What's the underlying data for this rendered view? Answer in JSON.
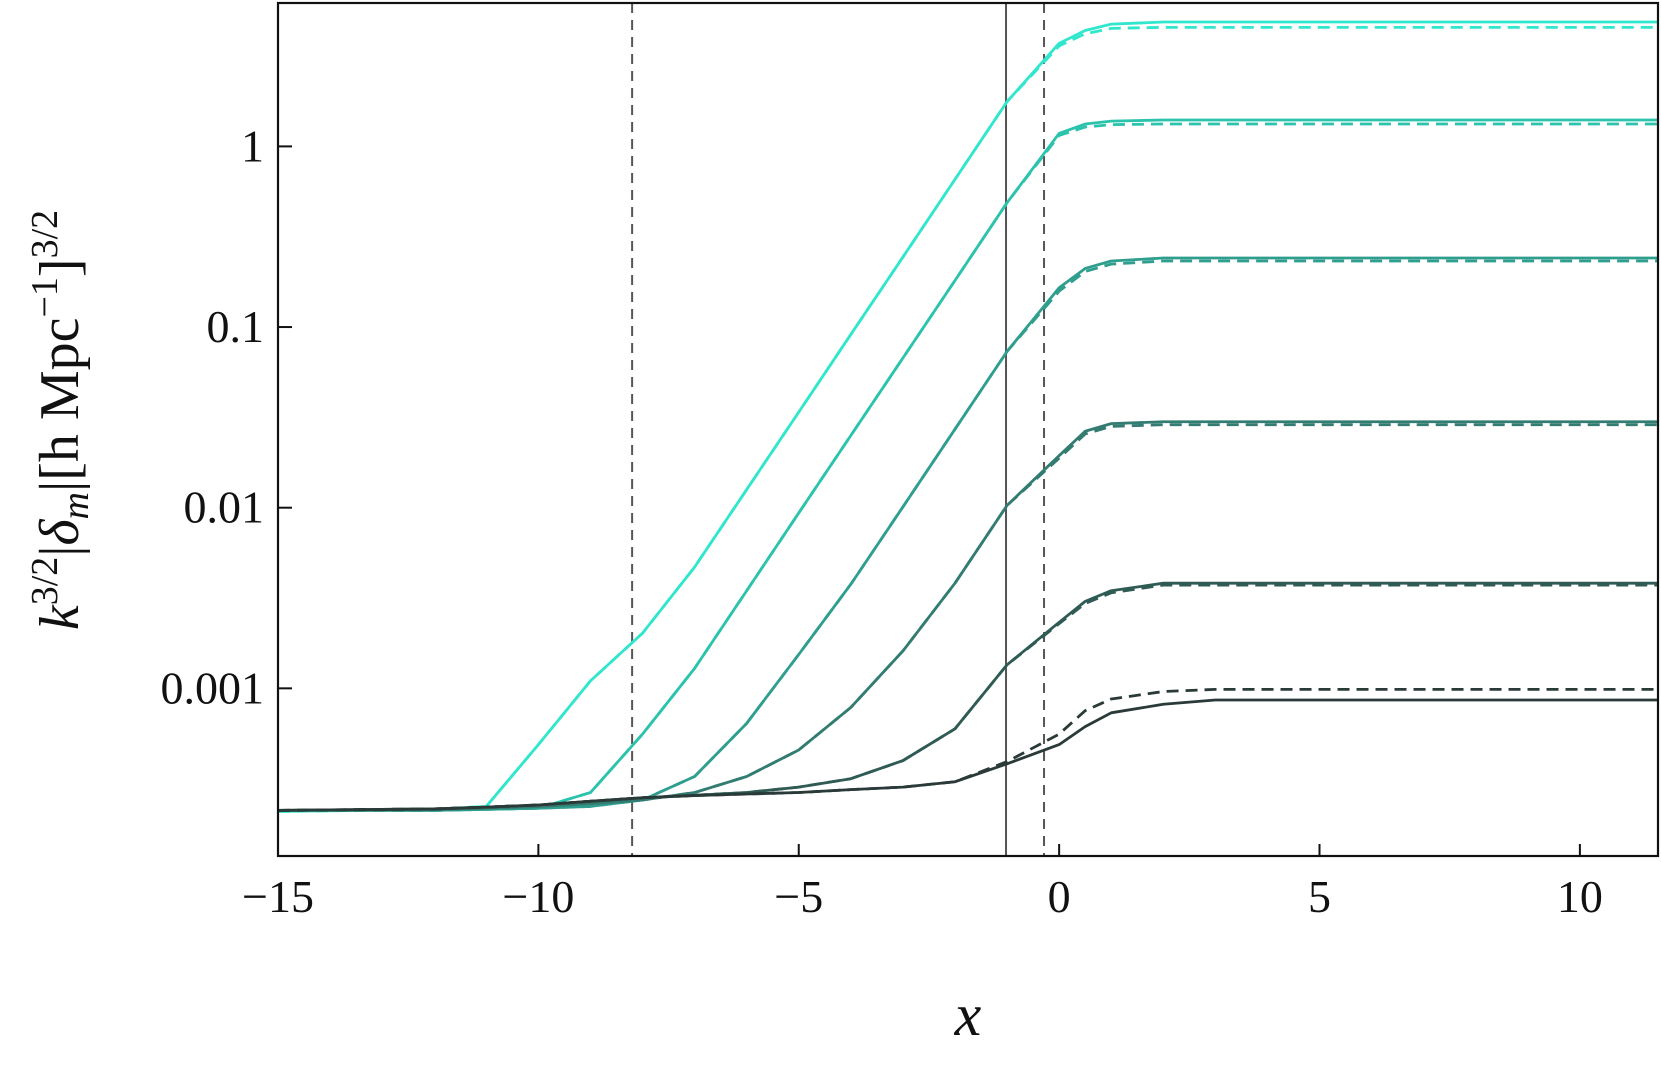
{
  "chart_data": {
    "type": "line",
    "xlabel": "x",
    "ylabel": [
      {
        "text": "k",
        "style": "italic"
      },
      {
        "text": "3/2",
        "shift": "sup"
      },
      {
        "text": "|"
      },
      {
        "text": "δ",
        "style": "italic"
      },
      {
        "text": "m",
        "shift": "sub",
        "style": "italic"
      },
      {
        "text": "|[h Mpc"
      },
      {
        "text": "−1",
        "shift": "sup"
      },
      {
        "text": "]"
      },
      {
        "text": "3/2",
        "shift": "sup"
      }
    ],
    "log_y": true,
    "xlim": [
      -15,
      11.5
    ],
    "ylim": [
      0.000118,
      6.22
    ],
    "xticks": [
      {
        "value": -15,
        "label": "−15"
      },
      {
        "value": -10,
        "label": "−10"
      },
      {
        "value": -5,
        "label": "−5"
      },
      0,
      5,
      10
    ],
    "yticks": [
      0.001,
      0.01,
      0.1,
      1
    ],
    "vlines": [
      {
        "x": -8.2,
        "style": "dashed"
      },
      {
        "x": -1.02,
        "style": "solid"
      },
      {
        "x": -0.29,
        "style": "dashed"
      }
    ],
    "x": [
      -15,
      -12,
      -11,
      -10,
      -9,
      -8,
      -7,
      -6,
      -5,
      -4,
      -3,
      -2,
      -1,
      0,
      0.5,
      1,
      2,
      3,
      11.5
    ],
    "series": [
      {
        "color": "#30e6cc",
        "dashed": false,
        "values": [
          0.000208,
          0.000214,
          0.000222,
          0.000488,
          0.0011,
          0.00202,
          0.00469,
          0.0126,
          0.0338,
          0.091,
          0.244,
          0.657,
          1.77,
          3.72,
          4.38,
          4.75,
          4.88,
          4.88,
          4.88
        ]
      },
      {
        "color": "#30e6cc",
        "dashed": true,
        "values": [
          0.000208,
          0.000214,
          0.000222,
          0.000488,
          0.0011,
          0.00202,
          0.00469,
          0.0126,
          0.0338,
          0.091,
          0.244,
          0.657,
          1.77,
          3.6,
          4.2,
          4.5,
          4.56,
          4.56,
          4.56
        ]
      },
      {
        "color": "#2bc3ac",
        "dashed": false,
        "values": [
          0.000211,
          0.000211,
          0.000214,
          0.000217,
          0.000265,
          0.000558,
          0.00129,
          0.00347,
          0.00935,
          0.0251,
          0.0674,
          0.181,
          0.488,
          1.18,
          1.33,
          1.38,
          1.4,
          1.4,
          1.4
        ]
      },
      {
        "color": "#2bc3ac",
        "dashed": true,
        "values": [
          0.000211,
          0.000211,
          0.000214,
          0.000217,
          0.000265,
          0.000558,
          0.00129,
          0.00347,
          0.00935,
          0.0251,
          0.0674,
          0.181,
          0.488,
          1.15,
          1.28,
          1.32,
          1.33,
          1.33,
          1.33
        ]
      },
      {
        "color": "#2f9e8e",
        "dashed": false,
        "values": [
          0.000211,
          0.000211,
          0.000214,
          0.000217,
          0.000222,
          0.000241,
          0.000325,
          0.00064,
          0.00154,
          0.00377,
          0.0101,
          0.0272,
          0.0733,
          0.165,
          0.211,
          0.232,
          0.241,
          0.241,
          0.241
        ]
      },
      {
        "color": "#2f9e8e",
        "dashed": true,
        "values": [
          0.000211,
          0.000211,
          0.000214,
          0.000217,
          0.000222,
          0.000241,
          0.000325,
          0.00064,
          0.00154,
          0.00377,
          0.0101,
          0.0272,
          0.0733,
          0.158,
          0.203,
          0.223,
          0.232,
          0.232,
          0.232
        ]
      },
      {
        "color": "#337c71",
        "dashed": false,
        "values": [
          0.000211,
          0.000213,
          0.000217,
          0.000222,
          0.00023,
          0.000241,
          0.000265,
          0.000325,
          0.000456,
          0.000784,
          0.00161,
          0.00382,
          0.0103,
          0.0194,
          0.0265,
          0.0292,
          0.0299,
          0.0299,
          0.0299
        ]
      },
      {
        "color": "#337c71",
        "dashed": true,
        "values": [
          0.000211,
          0.000213,
          0.000217,
          0.000222,
          0.00023,
          0.000241,
          0.000265,
          0.000325,
          0.000456,
          0.000784,
          0.00161,
          0.00382,
          0.0103,
          0.0188,
          0.0256,
          0.0282,
          0.0288,
          0.0288,
          0.0288
        ]
      },
      {
        "color": "#2f5b54",
        "dashed": false,
        "values": [
          0.000211,
          0.000215,
          0.00022,
          0.000226,
          0.000237,
          0.000248,
          0.000256,
          0.000265,
          0.000284,
          0.000316,
          0.000398,
          0.000597,
          0.00135,
          0.00232,
          0.00303,
          0.00347,
          0.00382,
          0.00382,
          0.00382
        ]
      },
      {
        "color": "#2f5b54",
        "dashed": true,
        "values": [
          0.000211,
          0.000215,
          0.00022,
          0.000226,
          0.000237,
          0.000248,
          0.000256,
          0.000265,
          0.000284,
          0.000316,
          0.000398,
          0.000597,
          0.00135,
          0.00228,
          0.00295,
          0.00338,
          0.00373,
          0.00373,
          0.00373
        ]
      },
      {
        "color": "#2a3a38",
        "dashed": false,
        "values": [
          0.000211,
          0.000215,
          0.00022,
          0.000226,
          0.000237,
          0.000248,
          0.000255,
          0.00026,
          0.000265,
          0.000275,
          0.000284,
          0.000304,
          0.000382,
          0.000488,
          0.000614,
          0.000732,
          0.000816,
          0.000862,
          0.000862
        ]
      },
      {
        "color": "#2a3a38",
        "dashed": true,
        "values": [
          0.000211,
          0.000215,
          0.00022,
          0.000226,
          0.000237,
          0.000248,
          0.000255,
          0.00026,
          0.000265,
          0.000275,
          0.000284,
          0.000304,
          0.000393,
          0.000558,
          0.000752,
          0.000873,
          0.00096,
          0.000987,
          0.000987
        ]
      }
    ]
  }
}
